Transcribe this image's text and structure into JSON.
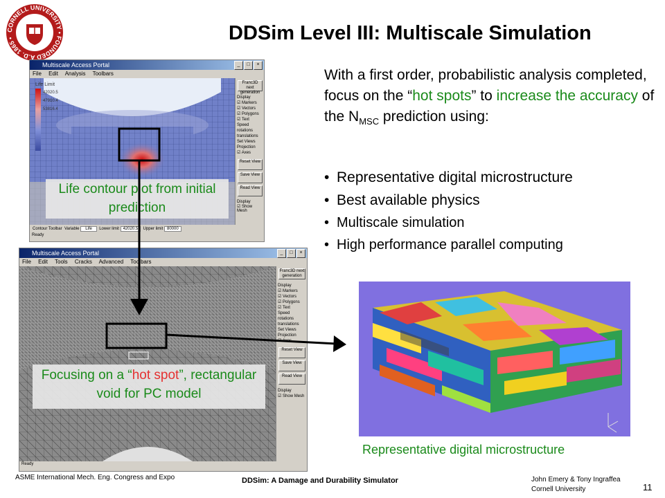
{
  "title": "DDSim Level III: Multiscale Simulation",
  "intro": {
    "part1": "With a first order, probabilistic analysis completed, focus on the “",
    "hot_spots": "hot spots",
    "part2": "” to ",
    "accuracy": "increase the accuracy",
    "part3": " of the N",
    "subscript": "MSC",
    "part4": " prediction using:"
  },
  "bullets": [
    "Representative digital microstructure",
    "Best available physics",
    "Multiscale simulation",
    "High performance parallel computing"
  ],
  "top_window": {
    "title": "Multiscale Access Portal",
    "menu": [
      "File",
      "Edit",
      "Analysis",
      "Toolbars"
    ],
    "legend_title": "Life Limit",
    "legend_values": [
      "42020.5",
      "47910.4",
      "53816.4"
    ],
    "panel_items": [
      "Franc3D next generation",
      "Display",
      "Markers",
      "Vectors",
      "Polygons",
      "Text",
      "Speed",
      "rotations",
      "translations",
      "Set Views",
      "Projection",
      "Axes",
      "Reset View",
      "Save View",
      "Read View",
      "Display",
      "Show Mesh"
    ],
    "status": "Ready",
    "toolbar": {
      "contour_label": "Contour Toolbar",
      "variable_label": "Variable",
      "variable_value": "Life",
      "lower_label": "Lower limit",
      "lower_value": "42020.5",
      "upper_label": "Upper limit",
      "upper_value": "80000"
    }
  },
  "bottom_window": {
    "title": "Multiscale Access Portal",
    "menu": [
      "File",
      "Edit",
      "Tools",
      "Cracks",
      "Advanced",
      "Toolbars"
    ],
    "status": "Ready"
  },
  "caption_top": "Life contour plot from initial prediction",
  "caption_bottom": {
    "part1": "Focusing on a “",
    "hot_spot": "hot spot",
    "part2": "”, rectangular void for PC model"
  },
  "micro_caption": "Representative digital microstructure",
  "footer": {
    "left": "ASME International Mech. Eng. Congress and Expo",
    "center": "DDSim: A Damage and Durability Simulator",
    "right_line1": "John Emery & Tony Ingraffea",
    "right_line2": "Cornell University",
    "page": "11"
  },
  "seal": {
    "text": "CORNELL UNIVERSITY • FOUNDED A.D. 1865 •"
  },
  "colors": {
    "seal_red": "#b31b1b",
    "green": "#1a8a1a",
    "micro_bg": "#8070e0"
  }
}
